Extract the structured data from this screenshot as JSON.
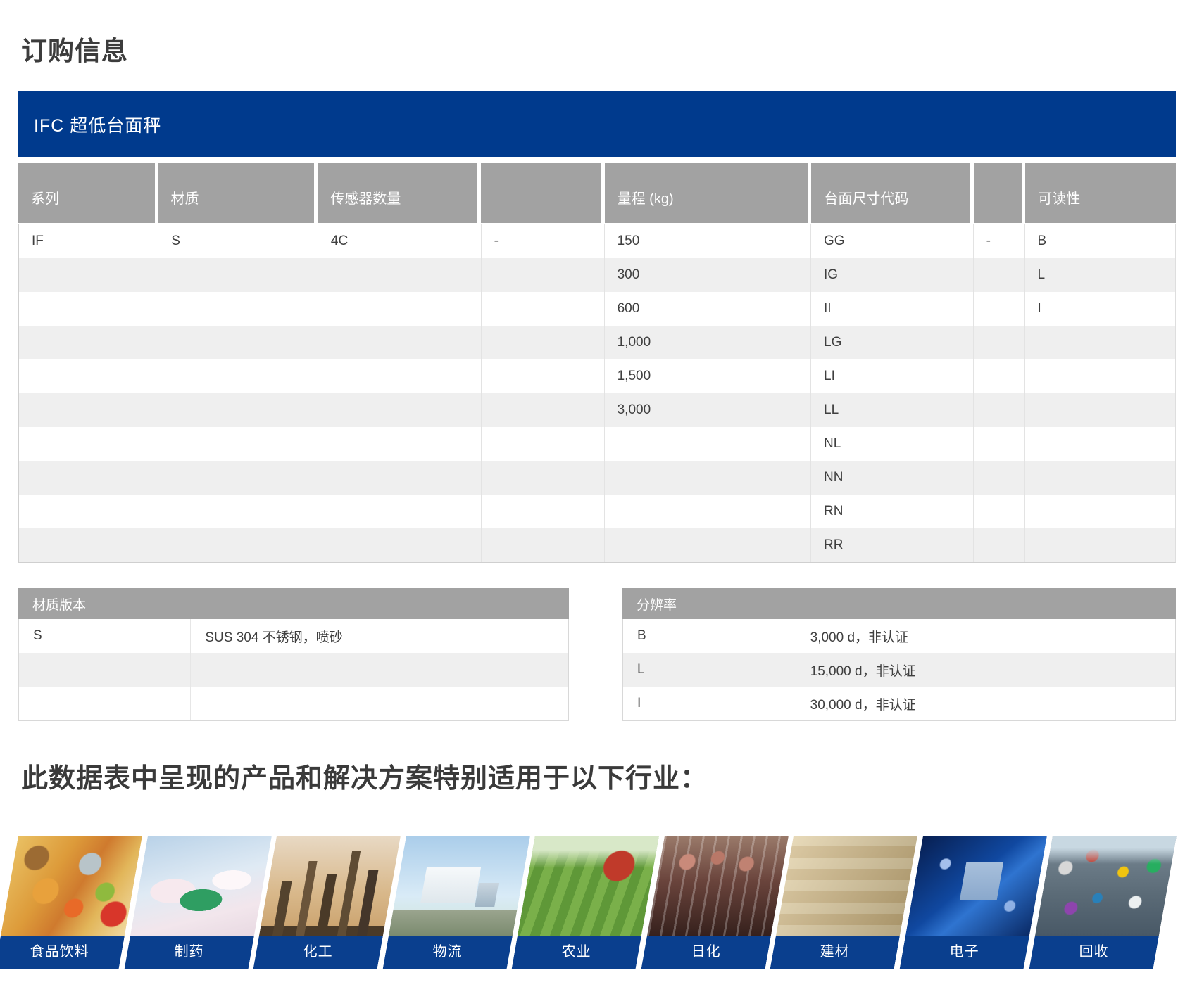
{
  "page": {
    "title": "订购信息"
  },
  "product_band": {
    "title": "IFC 超低台面秤"
  },
  "main_table": {
    "headers": [
      "系列",
      "材质",
      "传感器数量",
      "",
      "量程 (kg)",
      "台面尺寸代码",
      "",
      "可读性"
    ],
    "rows": [
      [
        "IF",
        "S",
        "4C",
        "-",
        "150",
        "GG",
        "-",
        "B"
      ],
      [
        "",
        "",
        "",
        "",
        "300",
        "IG",
        "",
        "L"
      ],
      [
        "",
        "",
        "",
        "",
        "600",
        "II",
        "",
        "I"
      ],
      [
        "",
        "",
        "",
        "",
        "1,000",
        "LG",
        "",
        ""
      ],
      [
        "",
        "",
        "",
        "",
        "1,500",
        "LI",
        "",
        ""
      ],
      [
        "",
        "",
        "",
        "",
        "3,000",
        "LL",
        "",
        ""
      ],
      [
        "",
        "",
        "",
        "",
        "",
        "NL",
        "",
        ""
      ],
      [
        "",
        "",
        "",
        "",
        "",
        "NN",
        "",
        ""
      ],
      [
        "",
        "",
        "",
        "",
        "",
        "RN",
        "",
        ""
      ],
      [
        "",
        "",
        "",
        "",
        "",
        "RR",
        "",
        ""
      ]
    ]
  },
  "material_table": {
    "title": "材质版本",
    "rows": [
      [
        "S",
        "SUS 304 不锈钢，喷砂"
      ],
      [
        "",
        ""
      ],
      [
        "",
        ""
      ]
    ]
  },
  "resolution_table": {
    "title": "分辨率",
    "rows": [
      [
        "B",
        "3,000 d，非认证"
      ],
      [
        "L",
        "15,000 d，非认证"
      ],
      [
        "I",
        "30,000 d，非认证"
      ]
    ]
  },
  "industries": {
    "heading": "此数据表中呈现的产品和解决方案特别适用于以下行业：",
    "items": [
      {
        "label": "食品饮料",
        "photo": "food-beverage-photo"
      },
      {
        "label": "制药",
        "photo": "pharmaceutical-photo"
      },
      {
        "label": "化工",
        "photo": "chemical-plant-photo"
      },
      {
        "label": "物流",
        "photo": "logistics-truck-photo"
      },
      {
        "label": "农业",
        "photo": "agriculture-tractor-photo"
      },
      {
        "label": "日化",
        "photo": "cosmetics-photo"
      },
      {
        "label": "建材",
        "photo": "building-materials-photo"
      },
      {
        "label": "电子",
        "photo": "electronics-chip-photo"
      },
      {
        "label": "回收",
        "photo": "recycling-photo"
      }
    ]
  },
  "colors": {
    "brand_blue": "#003a8d",
    "label_blue": "#0a3f8e",
    "header_gray": "#a2a2a2",
    "row_alt_gray": "#efefef"
  }
}
